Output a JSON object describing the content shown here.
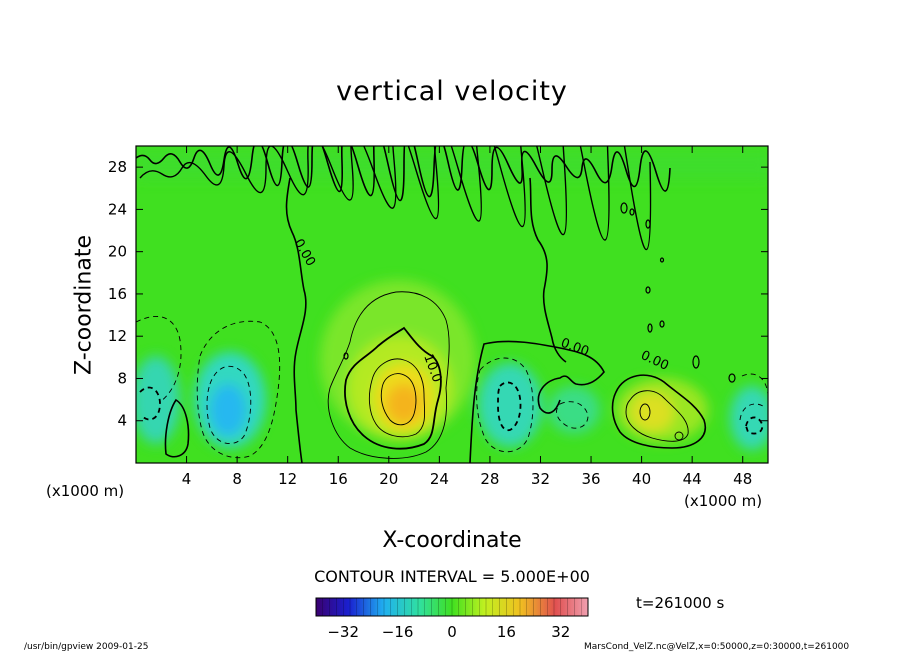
{
  "chart_data": {
    "type": "heatmap",
    "title": "vertical velocity",
    "xlabel": "X-coordinate",
    "ylabel": "Z-coordinate",
    "x_unit_label": "(x1000 m)",
    "x_ticks": [
      4,
      8,
      12,
      16,
      20,
      24,
      28,
      32,
      36,
      40,
      44,
      48
    ],
    "y_ticks": [
      4,
      8,
      12,
      16,
      20,
      24,
      28
    ],
    "xlim": [
      0,
      50
    ],
    "ylim": [
      0,
      30
    ],
    "contour_interval_text": "CONTOUR INTERVAL = 5.000E+00",
    "contour_labels": [
      "0.00",
      "0.00",
      "10.0",
      "0.00"
    ],
    "colorbar": {
      "ticks": [
        -32,
        -16,
        0,
        16,
        32
      ],
      "range": [
        -40,
        40
      ]
    },
    "time_label": "t=261000 s",
    "features": [
      {
        "x": 21.5,
        "z": 6,
        "value": 27,
        "kind": "updraft core"
      },
      {
        "x": 41,
        "z": 4.5,
        "value": 16,
        "kind": "updraft"
      },
      {
        "x": 7.5,
        "z": 5,
        "value": -16,
        "kind": "downdraft"
      },
      {
        "x": 3,
        "z": 6,
        "value": -10,
        "kind": "downdraft"
      },
      {
        "x": 29.5,
        "z": 5,
        "value": -10,
        "kind": "downdraft"
      },
      {
        "x": 48.5,
        "z": 4,
        "value": -10,
        "kind": "downdraft"
      },
      {
        "x": 34,
        "z": 4.5,
        "value": -5,
        "kind": "downdraft"
      }
    ]
  },
  "footer": {
    "left": "/usr/bin/gpview   2009-01-25",
    "right": "MarsCond_VelZ.nc@VelZ,x=0:50000,z=0:30000,t=261000"
  }
}
